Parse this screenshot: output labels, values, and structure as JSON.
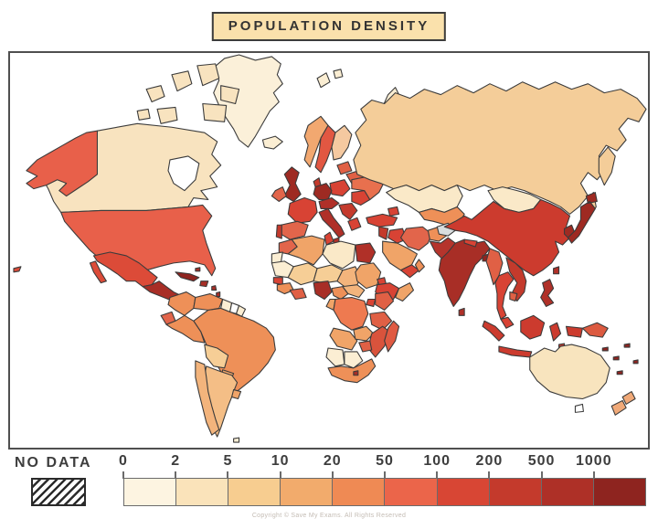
{
  "title": "POPULATION DENSITY",
  "legend": {
    "no_data_label": "NO DATA",
    "ticks": [
      "0",
      "2",
      "5",
      "10",
      "20",
      "50",
      "100",
      "200",
      "500",
      "1000"
    ],
    "segment_colors": [
      "#FDF4E1",
      "#FAE3BA",
      "#F7CD90",
      "#F2AB6C",
      "#EF8A54",
      "#EB654A",
      "#D84634",
      "#C43A2C",
      "#AE3027",
      "#8E241F"
    ]
  },
  "footer": {
    "copyright": "Copyright © Save My Exams. All Rights Reserved"
  },
  "map": {
    "ocean_color": "#ffffff",
    "outline_color": "#3b3b3b",
    "regions": [
      {
        "name": "greenland",
        "fill": "#FBF0D9"
      },
      {
        "name": "canada",
        "fill": "#F8E3BF"
      },
      {
        "name": "arctic-islands",
        "fill": "#F8E3BF"
      },
      {
        "name": "hudson-bay",
        "fill": "#FFFFFF"
      },
      {
        "name": "alaska",
        "fill": "#E8604A"
      },
      {
        "name": "usa",
        "fill": "#E8604A"
      },
      {
        "name": "hawaii",
        "fill": "#DC4B38"
      },
      {
        "name": "mexico",
        "fill": "#DC4B38"
      },
      {
        "name": "central-america",
        "fill": "#A82E26"
      },
      {
        "name": "cuba",
        "fill": "#8F2420"
      },
      {
        "name": "caribbean-islands",
        "fill": "#A82E26"
      },
      {
        "name": "colombia",
        "fill": "#EE9058"
      },
      {
        "name": "venezuela",
        "fill": "#EE9058"
      },
      {
        "name": "guyana",
        "fill": "#FBEED3"
      },
      {
        "name": "suriname",
        "fill": "#FFFFFF"
      },
      {
        "name": "french-guiana",
        "fill": "#FBEED3"
      },
      {
        "name": "ecuador",
        "fill": "#E2654B"
      },
      {
        "name": "peru",
        "fill": "#EE9058"
      },
      {
        "name": "brazil",
        "fill": "#EE9058"
      },
      {
        "name": "bolivia",
        "fill": "#F6CE96"
      },
      {
        "name": "paraguay",
        "fill": "#F0A468"
      },
      {
        "name": "uruguay",
        "fill": "#F0A468"
      },
      {
        "name": "chile",
        "fill": "#F3B47C"
      },
      {
        "name": "argentina",
        "fill": "#F4BE86"
      },
      {
        "name": "falklands",
        "fill": "#FBEED3"
      },
      {
        "name": "iceland",
        "fill": "#FBEED3"
      },
      {
        "name": "svalbard",
        "fill": "#FBEED3"
      },
      {
        "name": "novaya-zemlya",
        "fill": "#FBEED3"
      },
      {
        "name": "uk",
        "fill": "#9E2A22"
      },
      {
        "name": "ireland",
        "fill": "#E2654B"
      },
      {
        "name": "norway",
        "fill": "#F2A870"
      },
      {
        "name": "sweden",
        "fill": "#E25742"
      },
      {
        "name": "finland",
        "fill": "#F5C9A0"
      },
      {
        "name": "denmark",
        "fill": "#C43A2C"
      },
      {
        "name": "baltics",
        "fill": "#E06045"
      },
      {
        "name": "belarus",
        "fill": "#E06045"
      },
      {
        "name": "poland",
        "fill": "#D84334"
      },
      {
        "name": "germany",
        "fill": "#9E2A22"
      },
      {
        "name": "france",
        "fill": "#D84334"
      },
      {
        "name": "spain",
        "fill": "#E2654B"
      },
      {
        "name": "portugal",
        "fill": "#C43A2C"
      },
      {
        "name": "alpine",
        "fill": "#B03028"
      },
      {
        "name": "italy",
        "fill": "#B03028"
      },
      {
        "name": "balkans",
        "fill": "#C43A2C"
      },
      {
        "name": "greece",
        "fill": "#D84334"
      },
      {
        "name": "romania",
        "fill": "#D84334"
      },
      {
        "name": "ukraine",
        "fill": "#E8704E"
      },
      {
        "name": "russia",
        "fill": "#F4CD99"
      },
      {
        "name": "kamchatka",
        "fill": "#F4CD99"
      },
      {
        "name": "sakhalin",
        "fill": "#F4CD99"
      },
      {
        "name": "kazakhstan",
        "fill": "#FAE9C8"
      },
      {
        "name": "central-asia",
        "fill": "#EE9058"
      },
      {
        "name": "caucasus",
        "fill": "#D84334"
      },
      {
        "name": "no-data-region",
        "fill": "#D9DDDE"
      },
      {
        "name": "mongolia",
        "fill": "#FAE9C8"
      },
      {
        "name": "china",
        "fill": "#CC3B2E"
      },
      {
        "name": "afghanistan",
        "fill": "#EE9058"
      },
      {
        "name": "pakistan",
        "fill": "#B5342C"
      },
      {
        "name": "iran",
        "fill": "#E2654B"
      },
      {
        "name": "iraq",
        "fill": "#D84334"
      },
      {
        "name": "turkey",
        "fill": "#D84334"
      },
      {
        "name": "levant",
        "fill": "#C43A2C"
      },
      {
        "name": "saudi-arabia",
        "fill": "#F0A468"
      },
      {
        "name": "yemen",
        "fill": "#D84334"
      },
      {
        "name": "oman",
        "fill": "#EE9058"
      },
      {
        "name": "india",
        "fill": "#A82E26"
      },
      {
        "name": "nepal",
        "fill": "#D84334"
      },
      {
        "name": "bangladesh",
        "fill": "#8F2420"
      },
      {
        "name": "sri-lanka",
        "fill": "#B03028"
      },
      {
        "name": "myanmar",
        "fill": "#E06045"
      },
      {
        "name": "thailand",
        "fill": "#D84334"
      },
      {
        "name": "vietnam",
        "fill": "#C43A2C"
      },
      {
        "name": "cambodia",
        "fill": "#E06045"
      },
      {
        "name": "malaysia",
        "fill": "#D84334"
      },
      {
        "name": "indonesia",
        "fill": "#CC3B2E"
      },
      {
        "name": "papua-new-guinea",
        "fill": "#DC5A40"
      },
      {
        "name": "philippines",
        "fill": "#B03028"
      },
      {
        "name": "taiwan",
        "fill": "#B03028"
      },
      {
        "name": "korea",
        "fill": "#9E2A22"
      },
      {
        "name": "japan",
        "fill": "#9E2A22"
      },
      {
        "name": "pacific-islands",
        "fill": "#8F2420"
      },
      {
        "name": "australia",
        "fill": "#F8E4BE"
      },
      {
        "name": "tasmania",
        "fill": "#FFFFFF"
      },
      {
        "name": "new-zealand",
        "fill": "#F0A978"
      },
      {
        "name": "morocco",
        "fill": "#E2654B"
      },
      {
        "name": "western-sahara",
        "fill": "#FBEED3"
      },
      {
        "name": "algeria",
        "fill": "#F0A468"
      },
      {
        "name": "tunisia",
        "fill": "#D84334"
      },
      {
        "name": "libya",
        "fill": "#FAE9C8"
      },
      {
        "name": "egypt",
        "fill": "#B03028"
      },
      {
        "name": "mauritania",
        "fill": "#FBEED3"
      },
      {
        "name": "mali",
        "fill": "#F6CE96"
      },
      {
        "name": "niger",
        "fill": "#F6CE96"
      },
      {
        "name": "chad",
        "fill": "#F3B47C"
      },
      {
        "name": "sudan",
        "fill": "#F0A468"
      },
      {
        "name": "eritrea",
        "fill": "#D84334"
      },
      {
        "name": "ethiopia",
        "fill": "#D84334"
      },
      {
        "name": "somalia",
        "fill": "#F0A468"
      },
      {
        "name": "senegal",
        "fill": "#D84334"
      },
      {
        "name": "guinea",
        "fill": "#EE9058"
      },
      {
        "name": "ghana-ivory",
        "fill": "#E06045"
      },
      {
        "name": "nigeria",
        "fill": "#A82E26"
      },
      {
        "name": "cameroon",
        "fill": "#EE9058"
      },
      {
        "name": "car",
        "fill": "#F3B47C"
      },
      {
        "name": "gabon-congo",
        "fill": "#F0A468"
      },
      {
        "name": "drc",
        "fill": "#EE7A50"
      },
      {
        "name": "uganda",
        "fill": "#D84334"
      },
      {
        "name": "kenya",
        "fill": "#E06045"
      },
      {
        "name": "tanzania",
        "fill": "#E06045"
      },
      {
        "name": "angola",
        "fill": "#F0A468"
      },
      {
        "name": "zambia",
        "fill": "#F0A468"
      },
      {
        "name": "mozambique",
        "fill": "#D9533C"
      },
      {
        "name": "zimbabwe",
        "fill": "#E06045"
      },
      {
        "name": "namibia",
        "fill": "#FBEED3"
      },
      {
        "name": "botswana",
        "fill": "#FBEED3"
      },
      {
        "name": "south-africa",
        "fill": "#EE9058"
      },
      {
        "name": "lesotho",
        "fill": "#A82E26"
      },
      {
        "name": "madagascar",
        "fill": "#E05A42"
      }
    ]
  }
}
